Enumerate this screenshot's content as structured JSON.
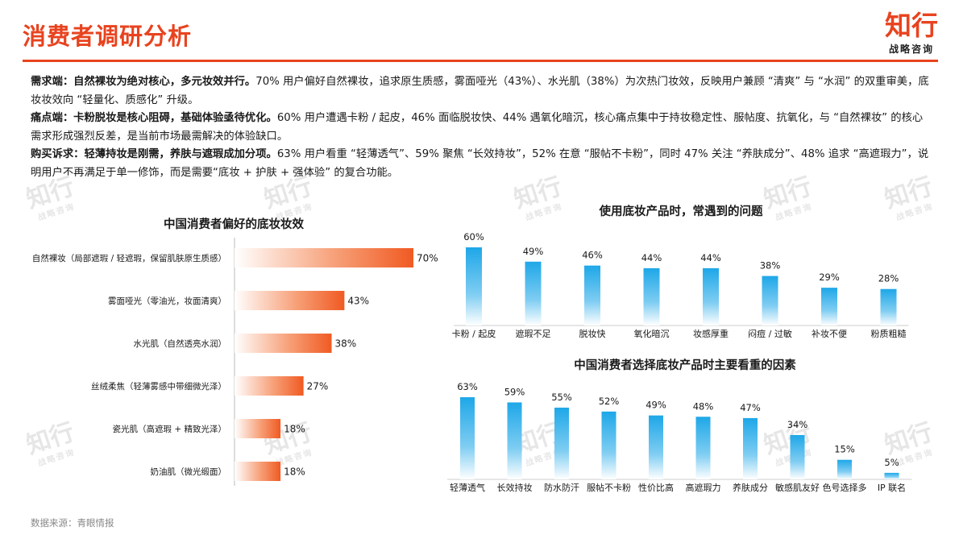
{
  "header": {
    "title": "消费者调研分析",
    "logo_main": "知行",
    "logo_sub": "战略咨询"
  },
  "summary": [
    {
      "lead": "需求端：自然裸妆为绝对核心，多元妆效并行。",
      "text": "70% 用户偏好自然裸妆，追求原生质感，雾面哑光（43%）、水光肌（38%）为次热门妆效，反映用户兼顾 “清爽” 与 “水润” 的双重审美，底妆妆效向 “轻量化、质感化” 升级。"
    },
    {
      "lead": "痛点端：卡粉脱妆是核心阻碍，基础体验亟待优化。",
      "text": "60% 用户遭遇卡粉 / 起皮，46% 面临脱妆快、44% 遇氧化暗沉，核心痛点集中于持妆稳定性、服帖度、抗氧化，与 “自然裸妆” 的核心需求形成强烈反差，是当前市场最需解决的体验缺口。"
    },
    {
      "lead": "购买诉求：轻薄持妆是刚需，养肤与遮瑕成加分项。",
      "text": "63% 用户看重 “轻薄透气”、59% 聚焦 “长效持妆”，52% 在意 “服帖不卡粉”，同时 47% 关注 “养肤成分”、48% 追求 “高遮瑕力”，说明用户不再满足于单一修饰，而是需要“底妆 + 护肤 + 强体验” 的复合功能。"
    }
  ],
  "watermark": {
    "main": "知行",
    "sub": "战略咨询"
  },
  "source": "数据来源：青眼情报",
  "colors": {
    "accent": "#e8431f",
    "blue": "#1ea7e8",
    "orange": "#f05a22"
  },
  "chart_data": [
    {
      "type": "bar",
      "orientation": "horizontal",
      "title": "中国消费者偏好的底妆妆效",
      "categories": [
        "自然裸妆（局部遮瑕 / 轻遮瑕，保留肌肤原生质感）",
        "雾面哑光（零油光，妆面清爽）",
        "水光肌（自然透亮水润）",
        "丝绒柔焦（轻薄雾感中带细微光泽）",
        "瓷光肌（高遮瑕 + 精致光泽）",
        "奶油肌（微光缎面）"
      ],
      "values": [
        70,
        43,
        38,
        27,
        18,
        18
      ],
      "value_labels": [
        "70%",
        "43%",
        "38%",
        "27%",
        "18%",
        "18%"
      ],
      "unit": "%",
      "xlim": [
        0,
        70
      ]
    },
    {
      "type": "bar",
      "orientation": "vertical",
      "title": "使用底妆产品时，常遇到的问题",
      "categories": [
        "卡粉 / 起皮",
        "遮瑕不足",
        "脱妆快",
        "氧化暗沉",
        "妆感厚重",
        "闷痘 / 过敏",
        "补妆不便",
        "粉质粗糙"
      ],
      "values": [
        60,
        49,
        46,
        44,
        44,
        38,
        29,
        28
      ],
      "value_labels": [
        "60%",
        "49%",
        "46%",
        "44%",
        "44%",
        "38%",
        "29%",
        "28%"
      ],
      "unit": "%",
      "ylim": [
        0,
        60
      ]
    },
    {
      "type": "bar",
      "orientation": "vertical",
      "title": "中国消费者选择底妆产品时主要看重的因素",
      "categories": [
        "轻薄透气",
        "长效持妆",
        "防水防汗",
        "服帖不卡粉",
        "性价比高",
        "高遮瑕力",
        "养肤成分",
        "敏感肌友好",
        "色号选择多",
        "IP 联名"
      ],
      "values": [
        63,
        59,
        55,
        52,
        49,
        48,
        47,
        34,
        15,
        5
      ],
      "value_labels": [
        "63%",
        "59%",
        "55%",
        "52%",
        "49%",
        "48%",
        "47%",
        "34%",
        "15%",
        "5%"
      ],
      "unit": "%",
      "ylim": [
        0,
        63
      ]
    }
  ]
}
